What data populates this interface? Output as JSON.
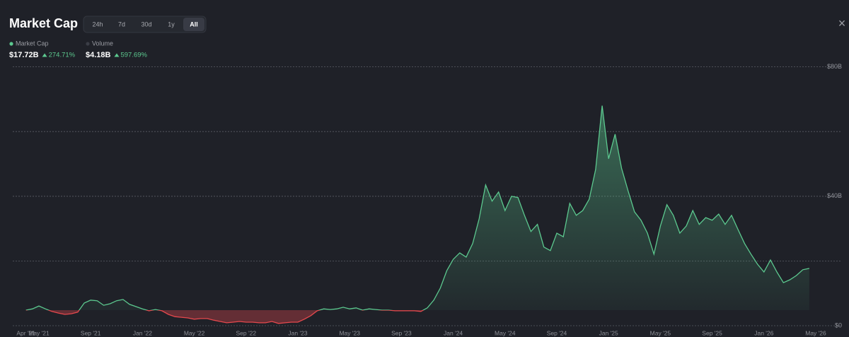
{
  "header": {
    "title": "Market Cap",
    "tabs": [
      "24h",
      "7d",
      "30d",
      "1y",
      "All"
    ],
    "active_tab": 4,
    "close": "×"
  },
  "legend": [
    {
      "name": "Market Cap",
      "value": "$17.72B",
      "change": "274.71%",
      "color": "#5cc98f"
    },
    {
      "name": "Volume",
      "value": "$4.18B",
      "change": "597.69%",
      "color": "#3a3d46"
    }
  ],
  "chart_data": {
    "type": "line",
    "color": "#5cc98f",
    "down_color": "#e5484d",
    "grid": true,
    "categories": [
      "Apr '21",
      null,
      "May '21",
      null,
      null,
      null,
      null,
      null,
      null,
      null,
      "Sep '21",
      null,
      null,
      null,
      null,
      null,
      null,
      null,
      "Jan '22",
      null,
      null,
      null,
      null,
      null,
      null,
      null,
      "May '22",
      null,
      null,
      null,
      null,
      null,
      null,
      null,
      "Sep '22",
      null,
      null,
      null,
      null,
      null,
      null,
      null,
      "Jan '23",
      null,
      null,
      null,
      null,
      null,
      null,
      null,
      "May '23",
      null,
      null,
      null,
      null,
      null,
      null,
      null,
      "Sep '23",
      null,
      null,
      null,
      null,
      null,
      null,
      null,
      "Jan '24",
      null,
      null,
      null,
      null,
      null,
      null,
      null,
      "May '24",
      null,
      null,
      null,
      null,
      null,
      null,
      null,
      "Sep '24",
      null,
      null,
      null,
      null,
      null,
      null,
      null,
      "Jan '25",
      null,
      null,
      null,
      null,
      null,
      null,
      null,
      "May '25",
      null,
      null,
      null,
      null,
      null,
      null,
      null,
      "Sep '25",
      null,
      null,
      null,
      null,
      null,
      null,
      null,
      "Jan '26",
      null,
      null,
      null,
      null,
      null,
      null,
      null,
      "May '26"
    ],
    "values": [
      4.8,
      5.2,
      6.1,
      5.2,
      4.4,
      3.9,
      3.5,
      3.7,
      4.2,
      7.0,
      7.9,
      7.7,
      6.3,
      6.8,
      7.7,
      8.1,
      6.6,
      5.9,
      5.2,
      4.6,
      5.0,
      4.6,
      3.5,
      2.8,
      2.6,
      2.4,
      2.0,
      2.2,
      2.2,
      1.7,
      1.3,
      0.9,
      1.1,
      1.3,
      1.1,
      1.1,
      0.9,
      0.9,
      1.3,
      0.7,
      0.9,
      1.1,
      1.1,
      2.0,
      3.1,
      4.6,
      5.2,
      5.0,
      5.2,
      5.7,
      5.2,
      5.5,
      4.8,
      5.2,
      5.0,
      4.8,
      4.8,
      4.6,
      4.6,
      4.6,
      4.6,
      4.4,
      5.5,
      7.9,
      11.6,
      17.0,
      20.5,
      22.5,
      21.2,
      25.4,
      33.0,
      43.5,
      38.5,
      41.3,
      35.6,
      40.0,
      39.6,
      34.1,
      29.1,
      31.3,
      24.3,
      23.2,
      28.6,
      27.5,
      37.8,
      34.1,
      35.6,
      39.1,
      48.3,
      68.0,
      51.6,
      59.2,
      48.7,
      41.7,
      35.2,
      32.6,
      28.6,
      22.1,
      30.8,
      37.4,
      34.1,
      28.6,
      30.8,
      35.6,
      31.3,
      33.4,
      32.6,
      34.5,
      31.3,
      34.1,
      29.7,
      25.4,
      22.1,
      19.0,
      16.6,
      20.3,
      16.6,
      13.3,
      14.2,
      15.5,
      17.3,
      17.7,
      null
    ],
    "ylim": [
      0,
      80
    ],
    "yticks": [
      {
        "value": 0,
        "label": "$0"
      },
      {
        "value": 40,
        "label": "$40B"
      },
      {
        "value": 80,
        "label": "$80B"
      }
    ],
    "ygrid": [
      20,
      60
    ]
  }
}
